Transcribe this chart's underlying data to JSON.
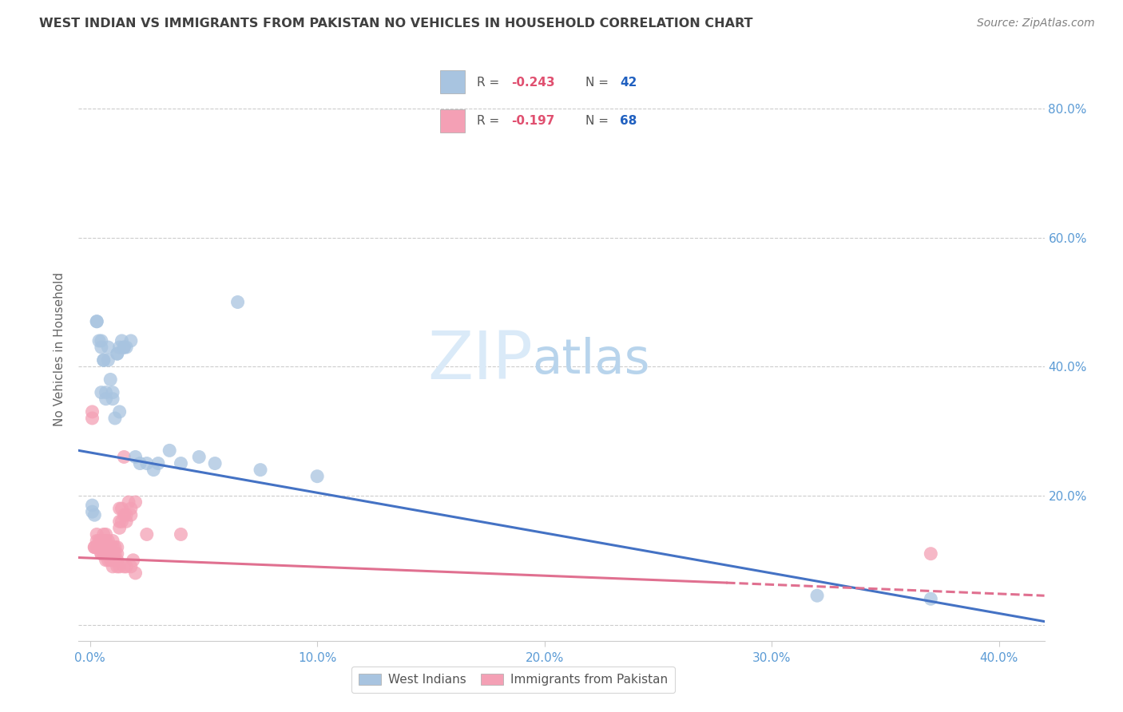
{
  "title": "WEST INDIAN VS IMMIGRANTS FROM PAKISTAN NO VEHICLES IN HOUSEHOLD CORRELATION CHART",
  "source": "Source: ZipAtlas.com",
  "ylabel": "No Vehicles in Household",
  "west_indian_R": -0.243,
  "west_indian_N": 42,
  "pakistan_R": -0.197,
  "pakistan_N": 68,
  "west_indian_color": "#a8c4e0",
  "pakistan_color": "#f4a0b5",
  "trendline_blue": "#4472c4",
  "trendline_pink": "#e07090",
  "watermark_color": "#daeaf8",
  "title_color": "#404040",
  "axis_tick_color": "#5b9bd5",
  "source_color": "#808080",
  "legend_R_color": "#e05070",
  "legend_N_color": "#2060c0",
  "west_indian_x": [
    0.001,
    0.001,
    0.002,
    0.003,
    0.003,
    0.004,
    0.005,
    0.005,
    0.005,
    0.006,
    0.006,
    0.007,
    0.007,
    0.008,
    0.008,
    0.009,
    0.01,
    0.01,
    0.011,
    0.012,
    0.012,
    0.013,
    0.013,
    0.014,
    0.015,
    0.015,
    0.016,
    0.018,
    0.02,
    0.022,
    0.025,
    0.028,
    0.03,
    0.035,
    0.04,
    0.048,
    0.055,
    0.065,
    0.075,
    0.1,
    0.32,
    0.37
  ],
  "west_indian_y": [
    0.185,
    0.175,
    0.17,
    0.47,
    0.47,
    0.44,
    0.44,
    0.43,
    0.36,
    0.41,
    0.41,
    0.36,
    0.35,
    0.43,
    0.41,
    0.38,
    0.36,
    0.35,
    0.32,
    0.42,
    0.42,
    0.43,
    0.33,
    0.44,
    0.43,
    0.43,
    0.43,
    0.44,
    0.26,
    0.25,
    0.25,
    0.24,
    0.25,
    0.27,
    0.25,
    0.26,
    0.25,
    0.5,
    0.24,
    0.23,
    0.045,
    0.04
  ],
  "pakistan_x": [
    0.001,
    0.001,
    0.002,
    0.002,
    0.003,
    0.003,
    0.003,
    0.003,
    0.004,
    0.004,
    0.004,
    0.004,
    0.005,
    0.005,
    0.005,
    0.005,
    0.005,
    0.006,
    0.006,
    0.006,
    0.006,
    0.006,
    0.007,
    0.007,
    0.007,
    0.007,
    0.007,
    0.008,
    0.008,
    0.008,
    0.008,
    0.009,
    0.009,
    0.009,
    0.01,
    0.01,
    0.01,
    0.01,
    0.01,
    0.011,
    0.011,
    0.011,
    0.012,
    0.012,
    0.012,
    0.012,
    0.013,
    0.013,
    0.013,
    0.013,
    0.014,
    0.014,
    0.015,
    0.015,
    0.015,
    0.016,
    0.016,
    0.016,
    0.017,
    0.018,
    0.018,
    0.018,
    0.019,
    0.02,
    0.02,
    0.025,
    0.04,
    0.37
  ],
  "pakistan_y": [
    0.33,
    0.32,
    0.12,
    0.12,
    0.14,
    0.13,
    0.12,
    0.12,
    0.13,
    0.12,
    0.12,
    0.12,
    0.13,
    0.12,
    0.12,
    0.11,
    0.11,
    0.14,
    0.13,
    0.12,
    0.11,
    0.11,
    0.14,
    0.13,
    0.12,
    0.11,
    0.1,
    0.13,
    0.12,
    0.11,
    0.1,
    0.12,
    0.11,
    0.1,
    0.13,
    0.12,
    0.11,
    0.1,
    0.09,
    0.12,
    0.11,
    0.1,
    0.12,
    0.11,
    0.1,
    0.09,
    0.18,
    0.16,
    0.15,
    0.09,
    0.18,
    0.16,
    0.26,
    0.17,
    0.09,
    0.17,
    0.16,
    0.09,
    0.19,
    0.18,
    0.17,
    0.09,
    0.1,
    0.19,
    0.08,
    0.14,
    0.14,
    0.11
  ],
  "xlim": [
    -0.005,
    0.42
  ],
  "ylim": [
    -0.025,
    0.88
  ],
  "xticks": [
    0.0,
    0.1,
    0.2,
    0.3,
    0.4
  ],
  "yticks": [
    0.0,
    0.2,
    0.4,
    0.6,
    0.8
  ],
  "xticklabels": [
    "0.0%",
    "10.0%",
    "20.0%",
    "30.0%",
    "40.0%"
  ],
  "yticklabels_right": [
    "",
    "20.0%",
    "40.0%",
    "60.0%",
    "80.0%"
  ],
  "blue_trendline_start_y": 0.27,
  "blue_trendline_end_y": 0.005,
  "pink_trendline_start_y": 0.104,
  "pink_trendline_solid_end_x": 0.28,
  "pink_trendline_end_y": 0.065,
  "pink_trendline_dash_end_x": 0.42,
  "pink_trendline_dash_end_y": 0.045
}
